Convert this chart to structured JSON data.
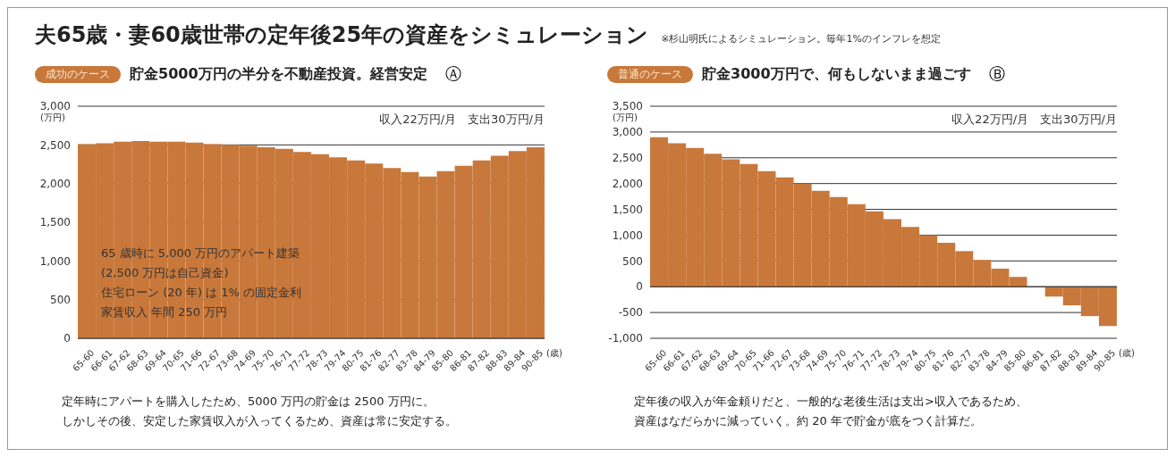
{
  "chart_data": [
    {
      "type": "other",
      "title": "夫65歳・妻60歳世帯の定年後25年の資産をシミュレーション",
      "annotations": [
        "※杉山明氏によるシミュレーション。毎年1%のインフレを想定"
      ]
    },
    {
      "type": "bar",
      "title": "貯金5000万円の半分を不動産投資。経営安定",
      "xlabel": "(歳)",
      "ylabel": "(万円)",
      "categories": [
        "65-60",
        "66-61",
        "67-62",
        "68-63",
        "69-64",
        "70-65",
        "71-66",
        "72-67",
        "73-68",
        "74-69",
        "75-70",
        "76-71",
        "77-72",
        "78-73",
        "79-74",
        "80-75",
        "81-76",
        "82-77",
        "83-78",
        "84-79",
        "85-80",
        "86-81",
        "87-82",
        "88-83",
        "89-84",
        "90-85"
      ],
      "values": [
        2510,
        2520,
        2540,
        2550,
        2540,
        2540,
        2530,
        2510,
        2500,
        2490,
        2470,
        2450,
        2410,
        2380,
        2340,
        2300,
        2260,
        2200,
        2150,
        2090,
        2160,
        2230,
        2300,
        2360,
        2420,
        2470
      ],
      "color": "#c8783a",
      "ylim": [
        0,
        3000
      ],
      "yticks": [
        0,
        500,
        {
          "value": 1000,
          "label": "1,000"
        },
        {
          "value": 1500,
          "label": "1,500"
        },
        {
          "value": 2000,
          "label": "2,000"
        },
        {
          "value": 2500,
          "label": "2,500"
        },
        {
          "value": 3000,
          "label": "3,000"
        }
      ],
      "grid": "y",
      "annotations": [
        "成功のケース",
        "Ⓐ",
        "収入22万円/月　支出30万円/月",
        "65 歳時に 5,000 万円のアパート建築",
        "(2,500 万円は自己資金)",
        "住宅ローン (20 年) は 1% の固定金利",
        "家賃収入 年間 250 万円",
        "定年時にアパートを購入したため、5000 万円の貯金は 2500 万円に。",
        "しかしその後、安定した家賃収入が入ってくるため、資産は常に安定する。"
      ]
    },
    {
      "type": "bar",
      "title": "貯金3000万円で、何もしないまま過ごす",
      "xlabel": "(歳)",
      "ylabel": "(万円)",
      "categories": [
        "65-60",
        "66-61",
        "67-62",
        "68-63",
        "69-64",
        "70-65",
        "71-66",
        "72-67",
        "73-68",
        "74-69",
        "75-70",
        "76-71",
        "77-72",
        "78-73",
        "79-74",
        "80-75",
        "81-76",
        "82-77",
        "83-78",
        "84-79",
        "85-80",
        "86-81",
        "87-82",
        "88-83",
        "89-84",
        "90-85"
      ],
      "values": [
        2900,
        2780,
        2690,
        2580,
        2470,
        2380,
        2240,
        2120,
        2000,
        1860,
        1740,
        1600,
        1460,
        1310,
        1160,
        1000,
        850,
        690,
        520,
        350,
        190,
        0,
        -190,
        -360,
        -570,
        -760
      ],
      "color": "#c8783a",
      "ylim": [
        -1000,
        3500
      ],
      "yticks": [
        {
          "value": -1000,
          "label": "-1,000"
        },
        -500,
        0,
        500,
        {
          "value": 1000,
          "label": "1,000"
        },
        {
          "value": 1500,
          "label": "1,500"
        },
        {
          "value": 2000,
          "label": "2,000"
        },
        {
          "value": 2500,
          "label": "2,500"
        },
        {
          "value": 3000,
          "label": "3,000"
        },
        {
          "value": 3500,
          "label": "3,500"
        }
      ],
      "grid": "y",
      "annotations": [
        "普通のケース",
        "Ⓑ",
        "収入22万円/月　支出30万円/月",
        "定年後の収入が年金頼りだと、一般的な老後生活は支出>収入であるため、",
        "資産はなだらかに減っていく。約 20 年で貯金が底をつく計算だ。"
      ]
    }
  ]
}
